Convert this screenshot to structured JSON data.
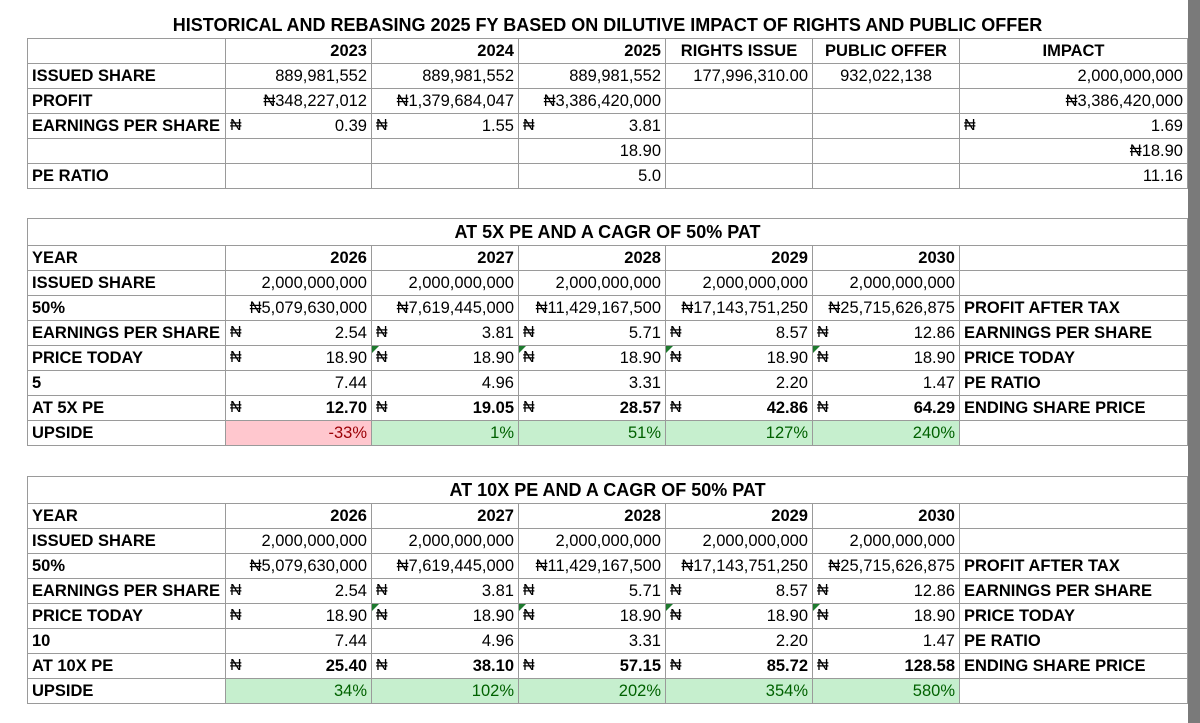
{
  "naira": "₦",
  "historical": {
    "title": "HISTORICAL AND REBASING 2025 FY BASED ON DILUTIVE IMPACT OF RIGHTS AND PUBLIC OFFER",
    "headers": [
      "2023",
      "2024",
      "2025",
      "RIGHTS ISSUE",
      "PUBLIC OFFER",
      "IMPACT"
    ],
    "issued_share": {
      "label": "ISSUED SHARE",
      "v2023": "889,981,552",
      "v2024": "889,981,552",
      "v2025": "889,981,552",
      "rights": "177,996,310.00",
      "public": "932,022,138",
      "impact": "2,000,000,000"
    },
    "profit": {
      "label": "PROFIT",
      "v2023": "₦348,227,012",
      "v2024": "₦1,379,684,047",
      "v2025": "₦3,386,420,000",
      "impact": "₦3,386,420,000"
    },
    "eps": {
      "label": "EARNINGS PER SHARE",
      "v2023": "0.39",
      "v2024": "1.55",
      "v2025": "3.81",
      "impact": "1.69"
    },
    "price": {
      "v2025": "18.90",
      "impact": "₦18.90"
    },
    "pe": {
      "label": "PE RATIO",
      "v2025": "5.0",
      "impact": "11.16"
    }
  },
  "pe5": {
    "title": "AT 5X PE AND A CAGR OF 50% PAT",
    "year_label": "YEAR",
    "years": [
      "2026",
      "2027",
      "2028",
      "2029",
      "2030"
    ],
    "issued_label": "ISSUED SHARE",
    "issued": [
      "2,000,000,000",
      "2,000,000,000",
      "2,000,000,000",
      "2,000,000,000",
      "2,000,000,000"
    ],
    "growth_label": "50%",
    "profit": [
      "₦5,079,630,000",
      "₦7,619,445,000",
      "₦11,429,167,500",
      "₦17,143,751,250",
      "₦25,715,626,875"
    ],
    "profit_side": "PROFIT AFTER TAX",
    "eps_label": "EARNINGS PER SHARE",
    "eps": [
      "2.54",
      "3.81",
      "5.71",
      "8.57",
      "12.86"
    ],
    "eps_side": "EARNINGS PER SHARE",
    "price_label": "PRICE TODAY",
    "price": [
      "18.90",
      "18.90",
      "18.90",
      "18.90",
      "18.90"
    ],
    "price_side": "PRICE TODAY",
    "pe_label": "5",
    "pe": [
      "7.44",
      "4.96",
      "3.31",
      "2.20",
      "1.47"
    ],
    "pe_side": "PE RATIO",
    "target_label": "AT 5X PE",
    "target": [
      "12.70",
      "19.05",
      "28.57",
      "42.86",
      "64.29"
    ],
    "target_side": "ENDING SHARE PRICE",
    "upside_label": "UPSIDE",
    "upside": [
      "-33%",
      "1%",
      "51%",
      "127%",
      "240%"
    ]
  },
  "pe10": {
    "title": "AT 10X PE AND A CAGR OF 50% PAT",
    "year_label": "YEAR",
    "years": [
      "2026",
      "2027",
      "2028",
      "2029",
      "2030"
    ],
    "issued_label": "ISSUED SHARE",
    "issued": [
      "2,000,000,000",
      "2,000,000,000",
      "2,000,000,000",
      "2,000,000,000",
      "2,000,000,000"
    ],
    "growth_label": "50%",
    "profit": [
      "₦5,079,630,000",
      "₦7,619,445,000",
      "₦11,429,167,500",
      "₦17,143,751,250",
      "₦25,715,626,875"
    ],
    "profit_side": "PROFIT AFTER TAX",
    "eps_label": "EARNINGS PER SHARE",
    "eps": [
      "2.54",
      "3.81",
      "5.71",
      "8.57",
      "12.86"
    ],
    "eps_side": "EARNINGS PER SHARE",
    "price_label": "PRICE TODAY",
    "price": [
      "18.90",
      "18.90",
      "18.90",
      "18.90",
      "18.90"
    ],
    "price_side": "PRICE TODAY",
    "pe_label": "10",
    "pe": [
      "7.44",
      "4.96",
      "3.31",
      "2.20",
      "1.47"
    ],
    "pe_side": "PE RATIO",
    "target_label": "AT 10X PE",
    "target": [
      "25.40",
      "38.10",
      "57.15",
      "85.72",
      "128.58"
    ],
    "target_side": "ENDING SHARE PRICE",
    "upside_label": "UPSIDE",
    "upside": [
      "34%",
      "102%",
      "202%",
      "354%",
      "580%"
    ]
  },
  "colors": {
    "negative_fill": "#ffc7ce",
    "negative_text": "#9c0006",
    "positive_fill": "#c6efce",
    "positive_text": "#006100"
  }
}
